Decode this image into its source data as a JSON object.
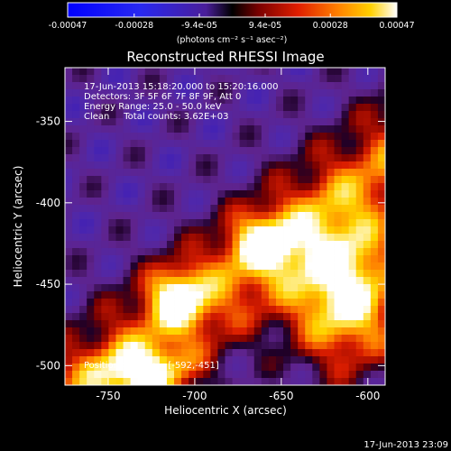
{
  "chart_data": {
    "type": "heatmap",
    "title": "Reconstructed RHESSI Image",
    "xlabel": "Heliocentric X (arcsec)",
    "ylabel": "Heliocentric Y (arcsec)",
    "xlim": [
      -775,
      -590
    ],
    "ylim": [
      -512,
      -317
    ],
    "x_ticks": [
      -750,
      -700,
      -650,
      -600
    ],
    "x_tick_labels": [
      "-750",
      "-700",
      "-650",
      "-600"
    ],
    "y_ticks": [
      -350,
      -400,
      -450,
      -500
    ],
    "y_tick_labels": [
      "-350",
      "-400",
      "-450",
      "-500"
    ],
    "colorbar": {
      "range": [
        -0.00047,
        0.00047
      ],
      "ticks": [
        -0.00047,
        -0.00028,
        -9.4e-05,
        9.4e-05,
        0.00028,
        0.00047
      ],
      "tick_labels": [
        "-0.00047",
        "-0.00028",
        "-9.4e-05",
        "9.4e-05",
        "0.00028",
        "0.00047"
      ],
      "unit_label": "(photons cm⁻² s⁻¹ asec⁻²)",
      "colormap": [
        "#0000ff",
        "#2020ff",
        "#4020c0",
        "#000000",
        "#7a0000",
        "#e02000",
        "#ff8000",
        "#ffd000",
        "#ffffff"
      ]
    },
    "annotations": {
      "time_range": "17-Jun-2013 15:18:20.000 to 15:20:16.000",
      "detectors": "Detectors: 3F 5F 6F 7F 8F 9F, Att 0",
      "energy_range": "Energy Range: 25.0 - 50.0 keV",
      "clean_counts": "Clean     Total counts: 3.62E+03",
      "peak_position": "Position of Peak = [-592,-451]"
    },
    "peak": {
      "x": -592,
      "y": -451
    },
    "total_counts": 3620,
    "energy_range_kev": [
      25.0,
      50.0
    ],
    "timestamp": "17-Jun-2013 23:09"
  }
}
